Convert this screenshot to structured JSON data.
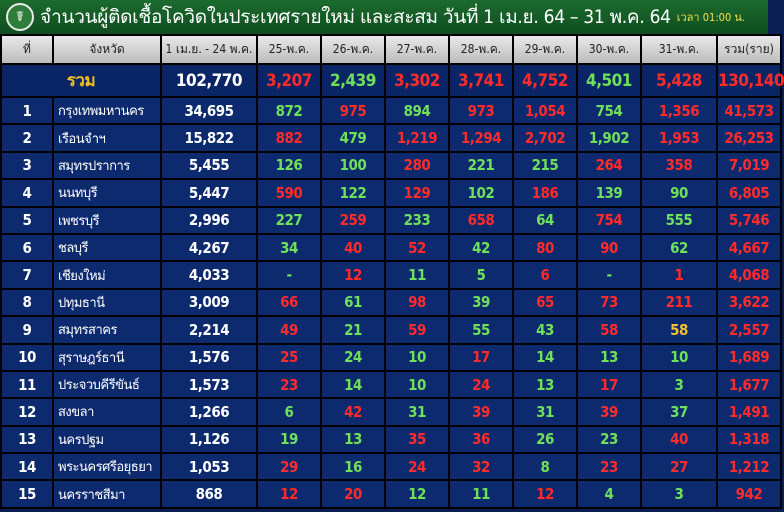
{
  "header": {
    "title": "จำนวนผู้ติดเชื้อโควิดในประเทศรายใหม่ และสะสม วันที่ 1 เม.ย. 64 – 31 พ.ค. 64",
    "time": "เวลา 01:00 น.",
    "logo": "ministry-of-public-health-logo"
  },
  "colors": {
    "r": "#ff2a2a",
    "g": "#6ee05a",
    "y": "#f0c030",
    "header_bg": "#1b6b2e",
    "table_bg": "#0d2a6e"
  },
  "columns": [
    "ที่",
    "จังหวัด",
    "1 เม.ย. - 24 พ.ค.",
    "25-พ.ค.",
    "26-พ.ค.",
    "27-พ.ค.",
    "28-พ.ค.",
    "29-พ.ค.",
    "30-พ.ค.",
    "31-พ.ค.",
    "รวม(ราย)"
  ],
  "sum": {
    "label": "รวม",
    "cum": "102,770",
    "days": [
      "3,207",
      "2,439",
      "3,302",
      "3,741",
      "4,752",
      "4,501",
      "5,428"
    ],
    "total": "130,140",
    "colors": [
      "r",
      "g",
      "r",
      "r",
      "r",
      "g",
      "r",
      "r"
    ]
  },
  "rows": [
    {
      "no": "1",
      "prov": "กรุงเทพมหานคร",
      "cum": "34,695",
      "days": [
        "872",
        "975",
        "894",
        "973",
        "1,054",
        "754",
        "1,356"
      ],
      "total": "41,573",
      "colors": [
        "g",
        "r",
        "g",
        "r",
        "r",
        "g",
        "r",
        "r"
      ]
    },
    {
      "no": "2",
      "prov": "เรือนจำฯ",
      "cum": "15,822",
      "days": [
        "882",
        "479",
        "1,219",
        "1,294",
        "2,702",
        "1,902",
        "1,953"
      ],
      "total": "26,253",
      "colors": [
        "r",
        "g",
        "r",
        "r",
        "r",
        "g",
        "r",
        "r"
      ]
    },
    {
      "no": "3",
      "prov": "สมุทรปราการ",
      "cum": "5,455",
      "days": [
        "126",
        "100",
        "280",
        "221",
        "215",
        "264",
        "358"
      ],
      "total": "7,019",
      "colors": [
        "g",
        "g",
        "r",
        "g",
        "g",
        "r",
        "r",
        "r"
      ]
    },
    {
      "no": "4",
      "prov": "นนทบุรี",
      "cum": "5,447",
      "days": [
        "590",
        "122",
        "129",
        "102",
        "186",
        "139",
        "90"
      ],
      "total": "6,805",
      "colors": [
        "r",
        "g",
        "r",
        "g",
        "r",
        "g",
        "g",
        "r"
      ]
    },
    {
      "no": "5",
      "prov": "เพชรบุรี",
      "cum": "2,996",
      "days": [
        "227",
        "259",
        "233",
        "658",
        "64",
        "754",
        "555"
      ],
      "total": "5,746",
      "colors": [
        "g",
        "r",
        "g",
        "r",
        "g",
        "r",
        "g",
        "r"
      ]
    },
    {
      "no": "6",
      "prov": "ชลบุรี",
      "cum": "4,267",
      "days": [
        "34",
        "40",
        "52",
        "42",
        "80",
        "90",
        "62"
      ],
      "total": "4,667",
      "colors": [
        "g",
        "r",
        "r",
        "g",
        "r",
        "r",
        "g",
        "r"
      ]
    },
    {
      "no": "7",
      "prov": "เชียงใหม่",
      "cum": "4,033",
      "days": [
        "-",
        "12",
        "11",
        "5",
        "6",
        "-",
        "1"
      ],
      "total": "4,068",
      "colors": [
        "g",
        "r",
        "g",
        "g",
        "r",
        "g",
        "r",
        "r"
      ]
    },
    {
      "no": "8",
      "prov": "ปทุมธานี",
      "cum": "3,009",
      "days": [
        "66",
        "61",
        "98",
        "39",
        "65",
        "73",
        "211"
      ],
      "total": "3,622",
      "colors": [
        "r",
        "g",
        "r",
        "g",
        "r",
        "r",
        "r",
        "r"
      ]
    },
    {
      "no": "9",
      "prov": "สมุทรสาคร",
      "cum": "2,214",
      "days": [
        "49",
        "21",
        "59",
        "55",
        "43",
        "58",
        "58"
      ],
      "total": "2,557",
      "colors": [
        "r",
        "g",
        "r",
        "g",
        "g",
        "r",
        "y",
        "r"
      ]
    },
    {
      "no": "10",
      "prov": "สุราษฎร์ธานี",
      "cum": "1,576",
      "days": [
        "25",
        "24",
        "10",
        "17",
        "14",
        "13",
        "10"
      ],
      "total": "1,689",
      "colors": [
        "r",
        "g",
        "g",
        "r",
        "g",
        "g",
        "g",
        "r"
      ]
    },
    {
      "no": "11",
      "prov": "ประจวบคีรีขันธ์",
      "cum": "1,573",
      "days": [
        "23",
        "14",
        "10",
        "24",
        "13",
        "17",
        "3"
      ],
      "total": "1,677",
      "colors": [
        "r",
        "g",
        "g",
        "r",
        "g",
        "r",
        "g",
        "r"
      ]
    },
    {
      "no": "12",
      "prov": "สงขลา",
      "cum": "1,266",
      "days": [
        "6",
        "42",
        "31",
        "39",
        "31",
        "39",
        "37"
      ],
      "total": "1,491",
      "colors": [
        "g",
        "r",
        "g",
        "r",
        "g",
        "r",
        "g",
        "r"
      ]
    },
    {
      "no": "13",
      "prov": "นครปฐม",
      "cum": "1,126",
      "days": [
        "19",
        "13",
        "35",
        "36",
        "26",
        "23",
        "40"
      ],
      "total": "1,318",
      "colors": [
        "g",
        "g",
        "r",
        "r",
        "g",
        "g",
        "r",
        "r"
      ]
    },
    {
      "no": "14",
      "prov": "พระนครศรีอยุธยา",
      "cum": "1,053",
      "days": [
        "29",
        "16",
        "24",
        "32",
        "8",
        "23",
        "27"
      ],
      "total": "1,212",
      "colors": [
        "r",
        "g",
        "r",
        "r",
        "g",
        "r",
        "r",
        "r"
      ]
    },
    {
      "no": "15",
      "prov": "นครราชสีมา",
      "cum": "868",
      "days": [
        "12",
        "20",
        "12",
        "11",
        "12",
        "4",
        "3"
      ],
      "total": "942",
      "colors": [
        "r",
        "r",
        "g",
        "g",
        "r",
        "g",
        "g",
        "r"
      ]
    }
  ]
}
